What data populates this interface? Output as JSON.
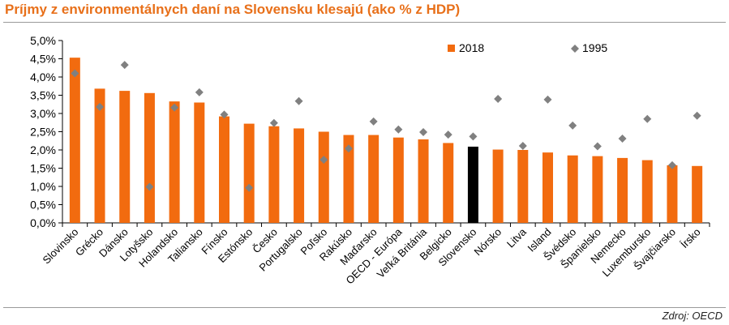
{
  "title": "Príjmy z environmentálnych daní na Slovensku klesajú (ako % z HDP)",
  "source": "Zdroj: OECD",
  "chart_data": {
    "type": "bar",
    "title": "Príjmy z environmentálnych daní na Slovensku klesajú (ako % z HDP)",
    "xlabel": "",
    "ylabel": "",
    "ylim": [
      0,
      5
    ],
    "y_ticks": [
      "0,0%",
      "0,5%",
      "1,0%",
      "1,5%",
      "2,0%",
      "2,5%",
      "3,0%",
      "3,5%",
      "4,0%",
      "4,5%",
      "5,0%"
    ],
    "grid": false,
    "legend_position": "top-right",
    "categories": [
      "Slovinsko",
      "Grécko",
      "Dánsko",
      "Lotyšsko",
      "Holandsko",
      "Taliansko",
      "Fínsko",
      "Estónsko",
      "Česko",
      "Portugalsko",
      "Poľsko",
      "Rakúsko",
      "Maďarsko",
      "OECD - Európa",
      "Veľká Británia",
      "Belgicko",
      "Slovensko",
      "Nórsko",
      "Litva",
      "Island",
      "Švédsko",
      "Španielsko",
      "Nemecko",
      "Luxembursko",
      "Švajčiarsko",
      "Írsko"
    ],
    "series": [
      {
        "name": "2018",
        "type": "bar",
        "color": "#f26b0f",
        "highlight": {
          "category": "Slovensko",
          "color": "#000000"
        },
        "values": [
          4.53,
          3.68,
          3.62,
          3.56,
          3.33,
          3.3,
          2.92,
          2.72,
          2.65,
          2.59,
          2.5,
          2.41,
          2.41,
          2.34,
          2.29,
          2.19,
          2.09,
          2.01,
          2.0,
          1.93,
          1.85,
          1.83,
          1.78,
          1.72,
          1.58,
          1.56
        ]
      },
      {
        "name": "1995",
        "type": "scatter",
        "marker": "diamond",
        "color": "#808080",
        "values": [
          4.1,
          3.18,
          4.33,
          0.99,
          3.16,
          3.58,
          2.97,
          0.96,
          2.74,
          3.34,
          1.73,
          2.04,
          2.78,
          2.56,
          2.49,
          2.42,
          2.37,
          3.4,
          2.11,
          3.38,
          2.67,
          2.1,
          2.31,
          2.85,
          1.58,
          2.94
        ]
      }
    ]
  }
}
